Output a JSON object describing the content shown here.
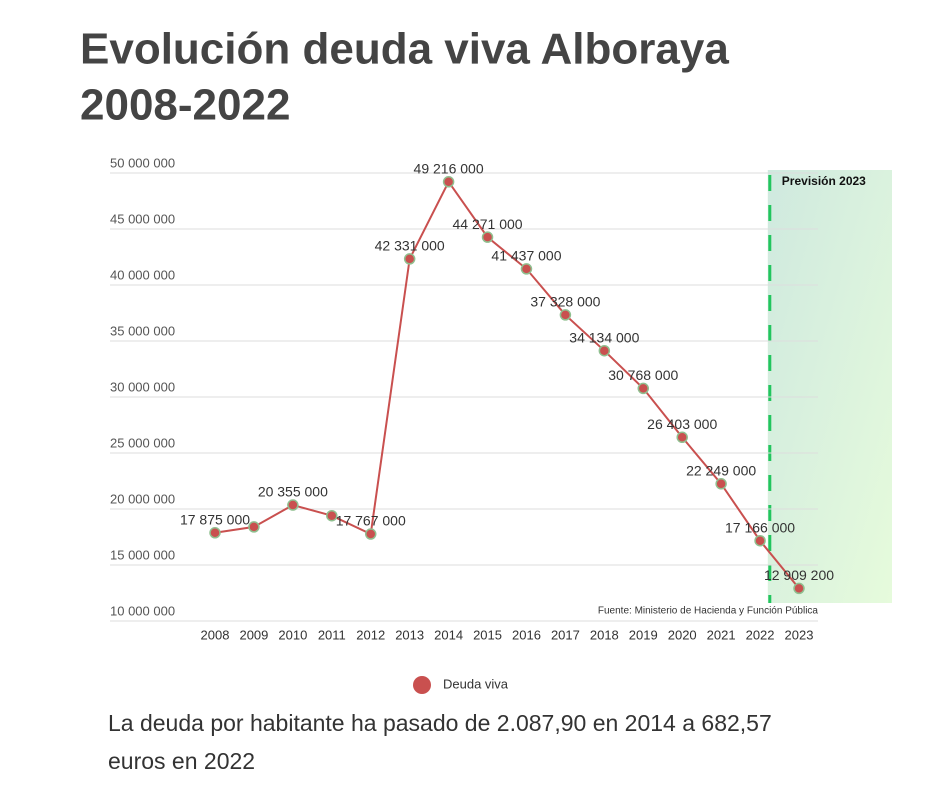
{
  "chart_data": {
    "type": "line",
    "title": [
      "Evolución deuda viva Alboraya",
      "2008-2022"
    ],
    "subtitle": [
      "La deuda por habitante ha pasado de 2.087,90 en 2014 a 682,57",
      "euros en 2022"
    ],
    "source": "Fuente: Ministerio de Hacienda y Función Pública",
    "highlight": {
      "category": "2023",
      "label": "Previsión 2023",
      "color": "#22c55e"
    },
    "categories": [
      "2008",
      "2009",
      "2010",
      "2011",
      "2012",
      "2013",
      "2014",
      "2015",
      "2016",
      "2017",
      "2018",
      "2019",
      "2020",
      "2021",
      "2022",
      "2023"
    ],
    "series": [
      {
        "name": "Deuda viva",
        "color": "#c9504f",
        "values": [
          17875000,
          18400000,
          20355000,
          19400000,
          17767000,
          42331000,
          49216000,
          44271000,
          41437000,
          37328000,
          34134000,
          30768000,
          26403000,
          22249000,
          17166000,
          12909200
        ],
        "value_labels": [
          "17 875 000",
          null,
          "20 355 000",
          null,
          "17 767 000",
          "42 331 000",
          "49 216 000",
          "44 271 000",
          "41 437 000",
          "37 328 000",
          "34 134 000",
          "30 768 000",
          "26 403 000",
          "22 249 000",
          "17 166 000",
          "12 909 200"
        ]
      }
    ],
    "ylim": [
      10000000,
      50000000
    ],
    "yticks": [
      {
        "value": 10000000,
        "label": "10 000 000"
      },
      {
        "value": 15000000,
        "label": "15 000 000"
      },
      {
        "value": 20000000,
        "label": "20 000 000"
      },
      {
        "value": 25000000,
        "label": "25 000 000"
      },
      {
        "value": 30000000,
        "label": "30 000 000"
      },
      {
        "value": 35000000,
        "label": "35 000 000"
      },
      {
        "value": 40000000,
        "label": "40 000 000"
      },
      {
        "value": 45000000,
        "label": "45 000 000"
      },
      {
        "value": 50000000,
        "label": "50 000 000"
      }
    ],
    "grid": true,
    "legend": "bottom"
  }
}
